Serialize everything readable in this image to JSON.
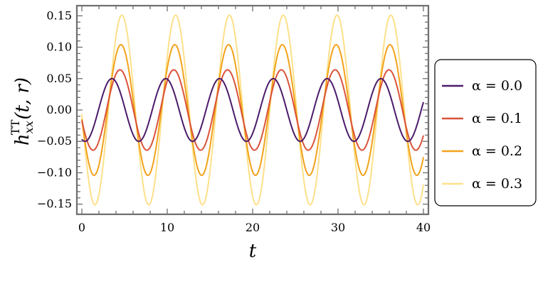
{
  "chart_data": {
    "type": "line",
    "xlabel": "t",
    "ylabel": {
      "main": "h",
      "sup": "TT",
      "sub": "xx",
      "args": "(t, r)"
    },
    "xlim": [
      -0.5,
      40.5
    ],
    "ylim": [
      -0.165,
      0.165
    ],
    "x_ticks": [
      0,
      10,
      20,
      30,
      40
    ],
    "x_tick_labels": [
      "0",
      "10",
      "20",
      "30",
      "40"
    ],
    "y_ticks": [
      -0.15,
      -0.1,
      -0.05,
      0.0,
      0.05,
      0.1,
      0.15
    ],
    "y_tick_labels": [
      "−0.15",
      "−0.10",
      "−0.05",
      "0.00",
      "0.05",
      "0.10",
      "0.15"
    ],
    "grid": false,
    "legend_position": "right",
    "series": [
      {
        "name": "α = 0.0",
        "color": "#4b1b6b",
        "amplitude": 0.05,
        "period": 6.3,
        "phase": -1.94,
        "stroke": 2
      },
      {
        "name": "α = 0.1",
        "color": "#d9533a",
        "amplitude": 0.064,
        "period": 6.3,
        "phase": -2.88,
        "stroke": 2
      },
      {
        "name": "α = 0.2",
        "color": "#f2a21c",
        "amplitude": 0.104,
        "period": 6.3,
        "phase": -3.0,
        "stroke": 2
      },
      {
        "name": "α = 0.3",
        "color": "#fde08a",
        "amplitude": 0.151,
        "period": 6.3,
        "phase": -3.1,
        "stroke": 2
      }
    ]
  }
}
